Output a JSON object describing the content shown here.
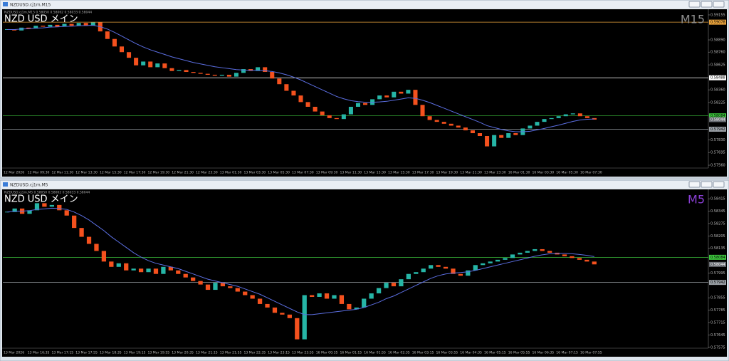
{
  "chart_data": [
    {
      "type": "candlestick",
      "window_title": "NZDUSD.cj1m,M15",
      "info_line": "NZDUSD.cj1m,M15  0.58050 0.58062 0.58033 0.58044",
      "title": "NZD USD メイン",
      "timeframe_label": "M15",
      "timeframe_color": "#8c8c8c",
      "up_color": "#26b5a6",
      "down_color": "#f4511e",
      "closes": [
        0.59,
        0.5899,
        0.5902,
        0.5901,
        0.5904,
        0.5903,
        0.5905,
        0.5903,
        0.5906,
        0.5904,
        0.5907,
        0.5904,
        0.59075,
        0.5898,
        0.589,
        0.5882,
        0.5876,
        0.587,
        0.5862,
        0.5866,
        0.586,
        0.5864,
        0.5859,
        0.5856,
        0.5857,
        0.5855,
        0.5854,
        0.5853,
        0.5852,
        0.5851,
        0.5852,
        0.585,
        0.5854,
        0.5858,
        0.5856,
        0.586,
        0.5855,
        0.5848,
        0.5842,
        0.5835,
        0.583,
        0.5823,
        0.5818,
        0.5813,
        0.5809,
        0.5806,
        0.5805,
        0.581,
        0.5818,
        0.5822,
        0.582,
        0.5826,
        0.583,
        0.5828,
        0.5834,
        0.5832,
        0.5836,
        0.582,
        0.5808,
        0.5804,
        0.5802,
        0.58,
        0.5798,
        0.5796,
        0.5793,
        0.579,
        0.5787,
        0.5776,
        0.5788,
        0.5785,
        0.579,
        0.5788,
        0.5795,
        0.5798,
        0.5802,
        0.5805,
        0.5806,
        0.5808,
        0.581,
        0.5811,
        0.5808,
        0.5806,
        0.58044
      ],
      "ma": {
        "color": "#5b6ee1",
        "values": [
          0.59,
          0.59,
          0.59005,
          0.59008,
          0.59015,
          0.59018,
          0.59025,
          0.59028,
          0.59033,
          0.59035,
          0.5904,
          0.59042,
          0.59045,
          0.5903,
          0.59005,
          0.5897,
          0.5893,
          0.5889,
          0.5885,
          0.58815,
          0.58785,
          0.5876,
          0.58735,
          0.5871,
          0.5869,
          0.5867,
          0.5865,
          0.58635,
          0.5862,
          0.58605,
          0.58595,
          0.58585,
          0.58575,
          0.5857,
          0.58568,
          0.58565,
          0.58562,
          0.58555,
          0.5854,
          0.5852,
          0.58495,
          0.58465,
          0.5843,
          0.58395,
          0.5836,
          0.58325,
          0.5829,
          0.58265,
          0.58245,
          0.58235,
          0.58228,
          0.58228,
          0.58232,
          0.58238,
          0.5825,
          0.58262,
          0.58275,
          0.5827,
          0.5825,
          0.58225,
          0.58195,
          0.58165,
          0.58135,
          0.58105,
          0.58075,
          0.58045,
          0.58015,
          0.5798,
          0.5796,
          0.5794,
          0.57925,
          0.57915,
          0.57915,
          0.5792,
          0.57935,
          0.5795,
          0.57968,
          0.57985,
          0.58005,
          0.58025,
          0.5804,
          0.58048,
          0.5805
        ]
      },
      "ylim": [
        0.5753,
        0.592
      ],
      "yticks": [
        0.59155,
        {
          "value": 0.5889,
          "label": "0.58890"
        },
        {
          "value": 0.5876,
          "label": "0.58760"
        },
        0.58625,
        {
          "value": 0.5836,
          "label": "0.58360"
        },
        0.58225,
        {
          "value": 0.5783,
          "label": "0.57830"
        },
        0.57695,
        {
          "value": 0.5756,
          "label": "0.57560"
        }
      ],
      "hlines": [
        {
          "value": 0.59078,
          "color": "#e8a23c"
        },
        {
          "value": 0.58488,
          "color": "#ffffff"
        },
        {
          "value": 0.58084,
          "color": "#3cc43c"
        },
        {
          "value": 0.57942,
          "color": "#9aa0a6"
        }
      ],
      "current_price": 0.58044,
      "x_labels": [
        "12 Mar 2026",
        "12 Mar 09:30",
        "12 Mar 11:30",
        "12 Mar 13:30",
        "12 Mar 15:30",
        "12 Mar 17:30",
        "12 Mar 19:30",
        "12 Mar 21:30",
        "12 Mar 23:30",
        "13 Mar 01:30",
        "13 Mar 03:30",
        "13 Mar 05:30",
        "13 Mar 07:30",
        "13 Mar 09:30",
        "13 Mar 11:30",
        "13 Mar 13:30",
        "13 Mar 15:30",
        "13 Mar 17:30",
        "13 Mar 19:30",
        "13 Mar 21:30",
        "13 Mar 23:30",
        "16 Mar 01:30",
        "16 Mar 03:30",
        "16 Mar 05:30",
        "16 Mar 07:30"
      ]
    },
    {
      "type": "candlestick",
      "window_title": "NZDUSD.cj1m,M5",
      "info_line": "NZDUSD.cj1m,M5  0.58050 0.58062 0.58033 0.58044",
      "title": "NZD USD メイン",
      "timeframe_label": "M5",
      "timeframe_color": "#8a3fd6",
      "up_color": "#26b5a6",
      "down_color": "#f4511e",
      "closes": [
        0.5834,
        0.5836,
        0.5833,
        0.5835,
        0.5839,
        0.5837,
        0.5838,
        0.5835,
        0.5832,
        0.5825,
        0.582,
        0.5816,
        0.5812,
        0.5806,
        0.5803,
        0.5805,
        0.5801,
        0.5802,
        0.58,
        0.5802,
        0.5799,
        0.5803,
        0.5801,
        0.5799,
        0.5797,
        0.5795,
        0.5793,
        0.579,
        0.5794,
        0.5792,
        0.5791,
        0.5789,
        0.5787,
        0.5785,
        0.5782,
        0.578,
        0.5777,
        0.5776,
        0.5774,
        0.5762,
        0.5787,
        0.5786,
        0.5788,
        0.5785,
        0.5787,
        0.5782,
        0.5779,
        0.578,
        0.5785,
        0.5788,
        0.5791,
        0.5794,
        0.5792,
        0.5796,
        0.5799,
        0.58,
        0.5802,
        0.5804,
        0.5803,
        0.5802,
        0.5799,
        0.5798,
        0.5801,
        0.5804,
        0.5805,
        0.5806,
        0.5807,
        0.5808,
        0.581,
        0.5811,
        0.5812,
        0.5813,
        0.5812,
        0.5811,
        0.581,
        0.5809,
        0.5808,
        0.5807,
        0.5806,
        0.58044
      ],
      "ma": {
        "color": "#5b6ee1",
        "values": [
          0.5834,
          0.58345,
          0.58345,
          0.58348,
          0.58355,
          0.58358,
          0.58362,
          0.5836,
          0.58355,
          0.5834,
          0.5832,
          0.58295,
          0.58265,
          0.58235,
          0.582,
          0.5817,
          0.5814,
          0.5811,
          0.58085,
          0.58065,
          0.5805,
          0.5804,
          0.5803,
          0.5802,
          0.58005,
          0.5799,
          0.57975,
          0.5796,
          0.5795,
          0.5794,
          0.5793,
          0.5792,
          0.57905,
          0.5789,
          0.57875,
          0.57855,
          0.57835,
          0.57815,
          0.57795,
          0.57775,
          0.5776,
          0.5776,
          0.57765,
          0.5777,
          0.57775,
          0.5778,
          0.57785,
          0.5779,
          0.578,
          0.57815,
          0.5783,
          0.5785,
          0.57865,
          0.57885,
          0.57905,
          0.57925,
          0.57945,
          0.57965,
          0.5798,
          0.5799,
          0.57995,
          0.57998,
          0.58002,
          0.5801,
          0.5802,
          0.5803,
          0.5804,
          0.5805,
          0.5806,
          0.5807,
          0.5808,
          0.5809,
          0.58098,
          0.58104,
          0.58106,
          0.58106,
          0.58104,
          0.581,
          0.58095,
          0.58088
        ]
      },
      "ylim": [
        0.5757,
        0.5846
      ],
      "yticks": [
        0.58415,
        0.58345,
        0.58275,
        0.58205,
        0.58135,
        0.57995,
        0.57855,
        0.57785,
        0.57715,
        0.57645,
        0.57575
      ],
      "hlines": [
        {
          "value": 0.58084,
          "color": "#3cc43c"
        },
        {
          "value": 0.57942,
          "color": "#9aa0a6"
        }
      ],
      "current_price": 0.58044,
      "x_labels": [
        "13 Mar 2026",
        "13 Mar 16:35",
        "13 Mar 17:15",
        "13 Mar 17:55",
        "13 Mar 18:35",
        "13 Mar 19:15",
        "13 Mar 19:55",
        "13 Mar 20:35",
        "13 Mar 21:15",
        "13 Mar 21:55",
        "13 Mar 22:35",
        "13 Mar 23:15",
        "13 Mar 23:55",
        "16 Mar 00:35",
        "16 Mar 01:15",
        "16 Mar 01:55",
        "16 Mar 02:35",
        "16 Mar 03:15",
        "16 Mar 03:55",
        "16 Mar 04:35",
        "16 Mar 05:15",
        "16 Mar 05:55",
        "16 Mar 06:35",
        "16 Mar 07:15",
        "16 Mar 07:55"
      ]
    }
  ]
}
